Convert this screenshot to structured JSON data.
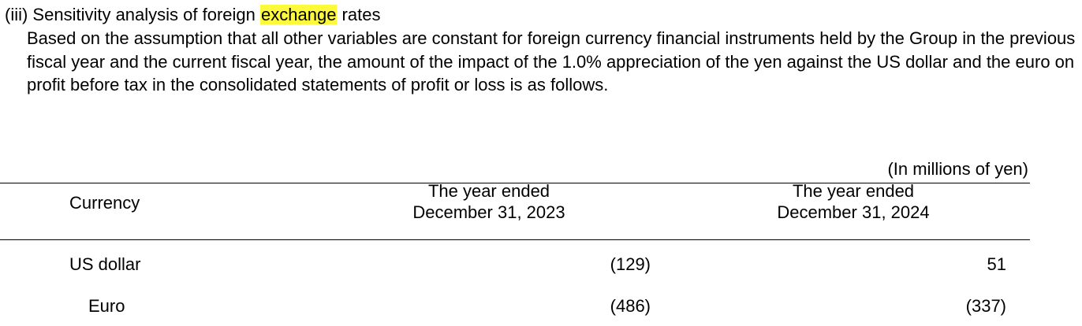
{
  "heading": {
    "prefix": "(iii) Sensitivity analysis of foreign ",
    "highlight": "exchange",
    "suffix": " rates"
  },
  "paragraph": "Based on the assumption that all other variables are constant for foreign currency financial instruments held by the Group in the previous fiscal year and the current fiscal year, the amount of the impact of the 1.0% appreciation of the yen against the US dollar and the euro on profit before tax in the consolidated statements of profit or loss is as follows.",
  "unit_note": "(In millions of yen)",
  "table": {
    "headers": {
      "currency": "Currency",
      "col1_line1": "The year ended",
      "col1_line2": "December 31, 2023",
      "col2_line1": "The year ended",
      "col2_line2": "December 31, 2024"
    },
    "rows": [
      {
        "label": "US dollar",
        "v2023": "(129)",
        "v2024": "51"
      },
      {
        "label": "Euro",
        "v2023": "(486)",
        "v2024": "(337)"
      }
    ]
  },
  "colors": {
    "highlight": "#fdfa3c"
  }
}
